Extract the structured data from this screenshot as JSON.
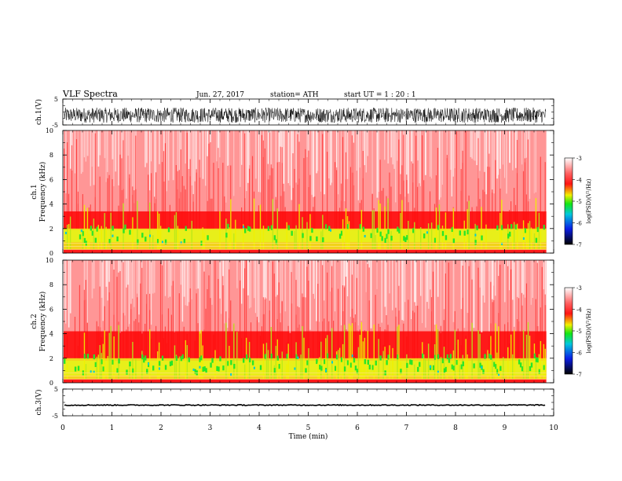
{
  "header": {
    "title": "VLF  Spectra",
    "date": "Jun. 27, 2017",
    "station": "station= ATH",
    "start": "start  UT  =    1  : 20 : 1"
  },
  "chart_data": [
    {
      "type": "line",
      "name": "ch1-waveform",
      "ylabel": "ch.1(V)",
      "ylim": [
        -5,
        5
      ],
      "yticks": [
        "5",
        "-5"
      ],
      "note": "dense noise, roughly -4 to 1.5 V"
    },
    {
      "type": "heatmap",
      "name": "ch1-spectrogram",
      "ylabel": "Frequency  (kHz)",
      "channel_label": "ch.1",
      "ylim": [
        0,
        10
      ],
      "yticks": [
        "0",
        "2",
        "4",
        "6",
        "8",
        "10"
      ],
      "colorbar_label": "log(PSD)(V²/Hz)",
      "colorbar_ticks": [
        "-3",
        "-4",
        "-5",
        "-6",
        "-7"
      ],
      "colorbar_range": [
        -7,
        -3
      ]
    },
    {
      "type": "heatmap",
      "name": "ch2-spectrogram",
      "ylabel": "Frequency  (kHz)",
      "channel_label": "ch.2",
      "ylim": [
        0,
        10
      ],
      "yticks": [
        "0",
        "2",
        "4",
        "6",
        "8",
        "10"
      ],
      "colorbar_label": "log(PSD)(V²/Hz)",
      "colorbar_ticks": [
        "-3",
        "-4",
        "-5",
        "-6",
        "-7"
      ],
      "colorbar_range": [
        -7,
        -3
      ]
    },
    {
      "type": "line",
      "name": "ch3-waveform",
      "ylabel": "ch.3(V)",
      "ylim": [
        -5,
        5
      ],
      "yticks": [
        "5",
        "-5"
      ],
      "note": "flat line near -1 V"
    }
  ],
  "xaxis": {
    "label": "Time  (min)",
    "xlim": [
      0,
      10
    ],
    "ticks": [
      "0",
      "1",
      "2",
      "3",
      "4",
      "5",
      "6",
      "7",
      "8",
      "9",
      "10"
    ],
    "data_end": 9.85
  },
  "colors": {
    "spectrum_low": "#000000",
    "spectrum_mid_blue": "#0a1ee6",
    "spectrum_cyan": "#00c8dc",
    "spectrum_green": "#14e614",
    "spectrum_yellow": "#f0f000",
    "spectrum_red": "#ff1414",
    "spectrum_high": "#ffffff"
  }
}
